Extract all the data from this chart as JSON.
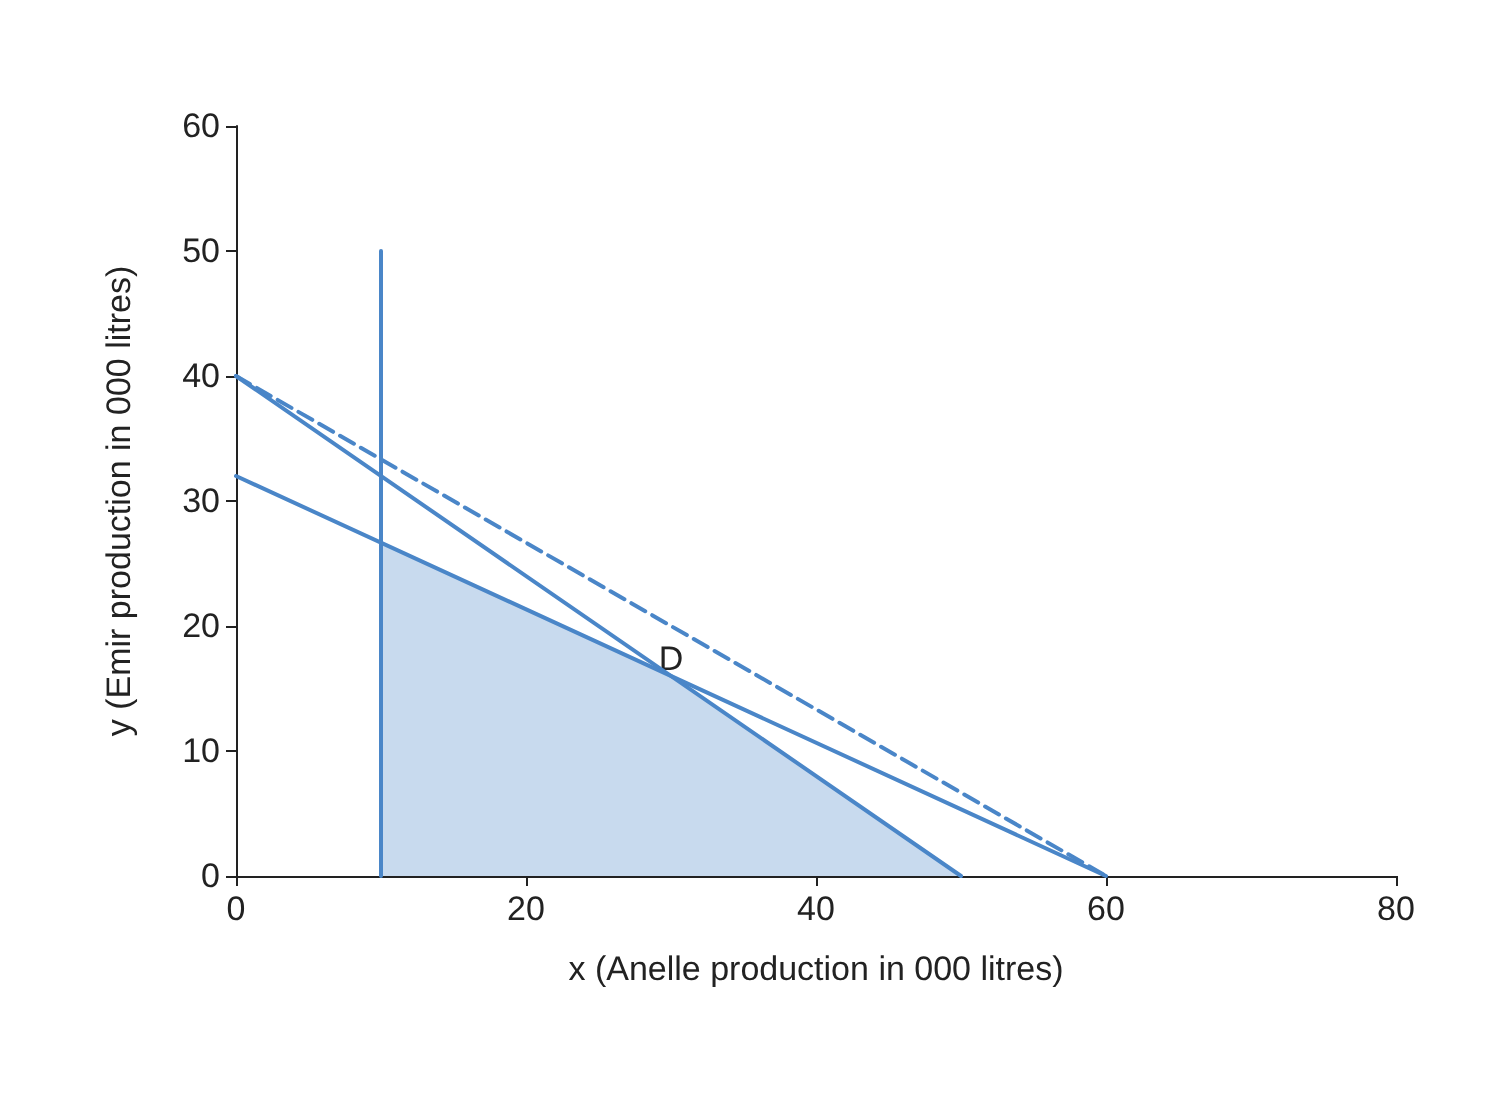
{
  "chart_data": {
    "type": "line",
    "xlabel": "x (Anelle production in 000 litres)",
    "ylabel": "y (Emir production in 000 litres)",
    "xlim": [
      0,
      80
    ],
    "xticks": [
      0,
      20,
      40,
      60,
      80
    ],
    "ylim": [
      0,
      60
    ],
    "yticks": [
      0,
      10,
      20,
      30,
      40,
      50,
      60
    ],
    "grid": false,
    "marker": "none",
    "series": [
      {
        "type": "area",
        "color": "#4a86c8",
        "x": [
          10,
          30,
          50
        ],
        "values": [
          26.7,
          16,
          0
        ]
      },
      {
        "color": "#4a86c8",
        "x": [
          10,
          10
        ],
        "values": [
          0,
          50
        ]
      },
      {
        "color": "#4a86c8",
        "x": [
          0,
          50
        ],
        "values": [
          40,
          0
        ]
      },
      {
        "color": "#4a86c8",
        "x": [
          0,
          60
        ],
        "values": [
          32,
          0
        ]
      },
      {
        "color": "#4a86c8",
        "x": [
          0,
          60
        ],
        "values": [
          40,
          0
        ],
        "line_style": "dashed"
      }
    ],
    "annotations": [
      {
        "text": "D",
        "x": 30,
        "y": 16
      }
    ]
  }
}
